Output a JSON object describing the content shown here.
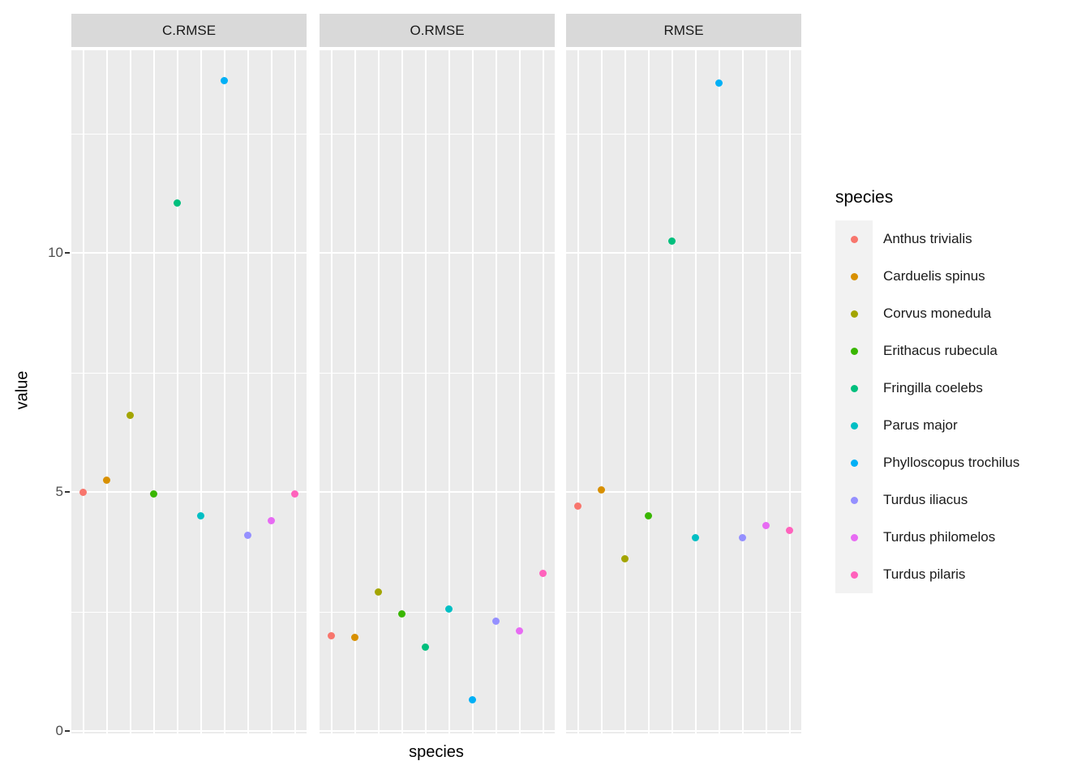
{
  "chart_data": {
    "type": "scatter",
    "faceting": "columns",
    "title": "",
    "xlabel": "species",
    "ylabel": "value",
    "yticks": [
      0,
      5,
      10
    ],
    "minor_yticks": [
      2.5,
      7.5,
      12.5
    ],
    "ylim": [
      -0.05,
      14.25
    ],
    "grid": true,
    "legend_position": "right",
    "legend_title": "species",
    "categories": [
      "Anthus trivialis",
      "Carduelis spinus",
      "Corvus monedula",
      "Erithacus rubecula",
      "Fringilla coelebs",
      "Parus major",
      "Phylloscopus trochilus",
      "Turdus iliacus",
      "Turdus philomelos",
      "Turdus pilaris"
    ],
    "category_colors": [
      "#F8766D",
      "#D89000",
      "#A3A500",
      "#39B600",
      "#00BF7D",
      "#00BFC4",
      "#00B0F6",
      "#9590FF",
      "#E76BF3",
      "#FF62BC"
    ],
    "facets": [
      {
        "label": "C.RMSE",
        "values": [
          5.0,
          5.25,
          6.6,
          4.95,
          11.05,
          4.5,
          13.6,
          4.1,
          4.4,
          4.95
        ]
      },
      {
        "label": "O.RMSE",
        "values": [
          2.0,
          1.95,
          2.9,
          2.45,
          1.75,
          2.55,
          0.65,
          2.3,
          2.1,
          3.3
        ]
      },
      {
        "label": "RMSE",
        "values": [
          4.7,
          5.05,
          3.6,
          4.5,
          10.25,
          4.05,
          13.55,
          4.05,
          4.3,
          4.2
        ]
      }
    ]
  },
  "styles": {
    "panel_bg": "#EBEBEB",
    "strip_bg": "#D9D9D9",
    "grid_color": "#FFFFFF",
    "tick_label_color": "#4D4D4D",
    "legend_key_bg": "#F2F2F2"
  }
}
